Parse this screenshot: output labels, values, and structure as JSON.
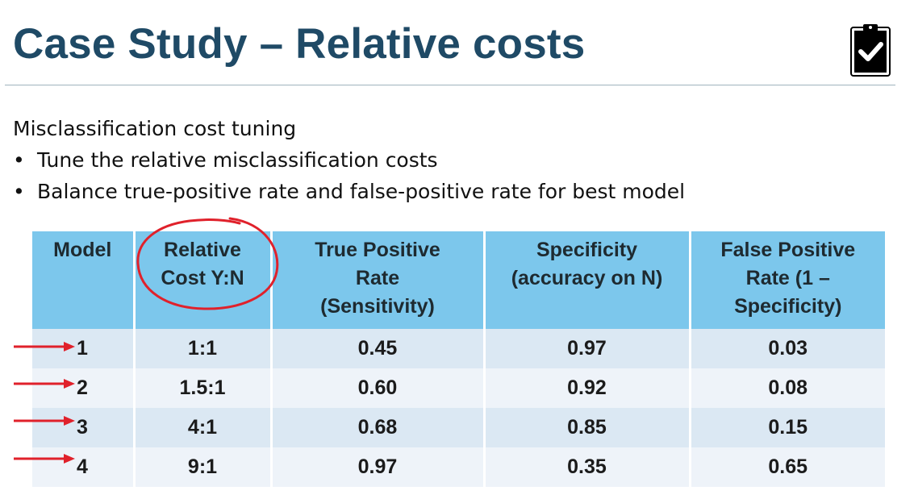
{
  "slide": {
    "title": "Case Study – Relative costs",
    "subtitle": "Misclassification cost tuning",
    "bullets": [
      "Tune the relative misclassification costs",
      "Balance true-positive rate and false-positive rate for best model"
    ],
    "bullet_glyph": "•",
    "icon": "clipboard-check-icon"
  },
  "table": {
    "headers": [
      "Model",
      "Relative Cost Y:N",
      "True Positive Rate (Sensitivity)",
      "Specificity (accuracy on N)",
      "False Positive Rate (1 – Specificity)"
    ],
    "rows": [
      [
        "1",
        "1:1",
        "0.45",
        "0.97",
        "0.03"
      ],
      [
        "2",
        "1.5:1",
        "0.60",
        "0.92",
        "0.08"
      ],
      [
        "3",
        "4:1",
        "0.68",
        "0.85",
        "0.15"
      ],
      [
        "4",
        "9:1",
        "0.97",
        "0.35",
        "0.65"
      ]
    ]
  },
  "annotations": {
    "highlight_color": "#e0212b",
    "header_color": "#7cc7ec",
    "title_color": "#1f4a66"
  }
}
